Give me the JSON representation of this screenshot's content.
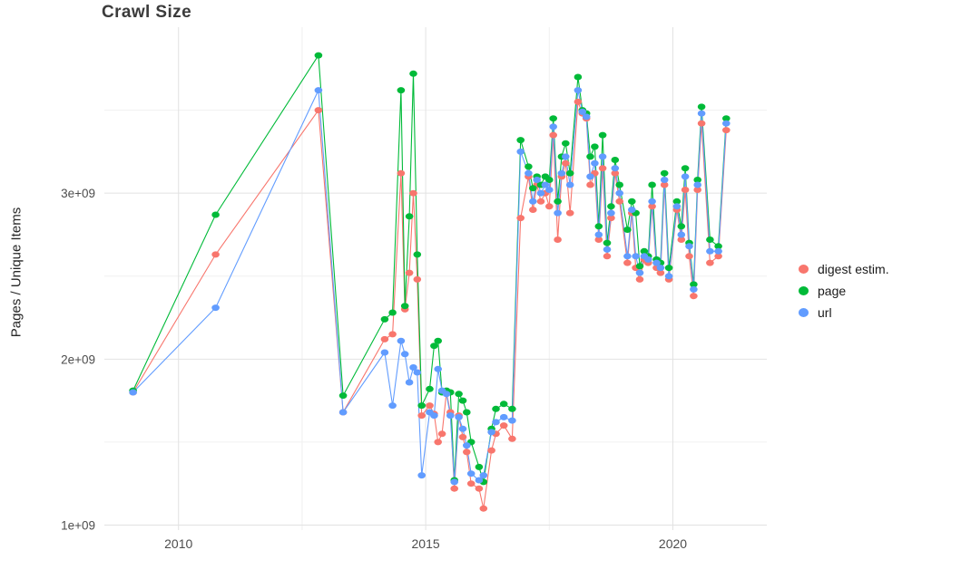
{
  "chart_data": {
    "type": "line",
    "title": "Crawl Size",
    "ylabel": "Pages / Unique Items",
    "xlabel": "",
    "legend_position": "right",
    "grid": true,
    "unit": "values in billions (1e+09)",
    "xlim": [
      2008.5,
      2021.9
    ],
    "ylim": [
      0.97,
      4.0
    ],
    "x_ticks": [
      {
        "v": 2010,
        "label": "2010"
      },
      {
        "v": 2015,
        "label": "2015"
      },
      {
        "v": 2020,
        "label": "2020"
      }
    ],
    "y_ticks": [
      {
        "v": 1,
        "label": "1e+09"
      },
      {
        "v": 2,
        "label": "2e+09"
      },
      {
        "v": 3,
        "label": "3e+09"
      }
    ],
    "x_minor_gridlines": [
      2012.5,
      2017.5
    ],
    "y_minor_gridlines": [
      1.5,
      2.5,
      3.5
    ],
    "x": [
      2009.08,
      2010.75,
      2012.83,
      2013.33,
      2014.17,
      2014.33,
      2014.5,
      2014.58,
      2014.67,
      2014.75,
      2014.83,
      2014.92,
      2015.08,
      2015.17,
      2015.25,
      2015.33,
      2015.42,
      2015.5,
      2015.58,
      2015.67,
      2015.75,
      2015.83,
      2015.92,
      2016.08,
      2016.17,
      2016.33,
      2016.42,
      2016.58,
      2016.75,
      2016.92,
      2017.08,
      2017.17,
      2017.25,
      2017.33,
      2017.42,
      2017.5,
      2017.58,
      2017.67,
      2017.75,
      2017.83,
      2017.92,
      2018.08,
      2018.17,
      2018.25,
      2018.33,
      2018.42,
      2018.5,
      2018.58,
      2018.67,
      2018.75,
      2018.83,
      2018.92,
      2019.08,
      2019.17,
      2019.25,
      2019.33,
      2019.42,
      2019.5,
      2019.58,
      2019.67,
      2019.75,
      2019.83,
      2019.92,
      2020.08,
      2020.17,
      2020.25,
      2020.33,
      2020.42,
      2020.5,
      2020.58,
      2020.75,
      2020.92,
      2021.08
    ],
    "series": [
      {
        "name": "digest estim.",
        "color": "#F8766D",
        "values": [
          1.8,
          2.63,
          3.5,
          1.68,
          2.12,
          2.15,
          3.12,
          2.3,
          2.52,
          3.0,
          2.48,
          1.66,
          1.72,
          1.67,
          1.5,
          1.55,
          1.8,
          1.68,
          1.22,
          1.66,
          1.53,
          1.44,
          1.25,
          1.22,
          1.1,
          1.45,
          1.55,
          1.6,
          1.52,
          2.85,
          3.1,
          2.9,
          3.05,
          2.95,
          3.0,
          2.92,
          3.35,
          2.72,
          3.1,
          3.18,
          2.88,
          3.55,
          3.48,
          3.45,
          3.05,
          3.12,
          2.72,
          3.15,
          2.62,
          2.85,
          3.12,
          2.95,
          2.58,
          2.88,
          2.55,
          2.48,
          2.6,
          2.58,
          2.92,
          2.55,
          2.52,
          3.05,
          2.48,
          2.9,
          2.72,
          3.02,
          2.62,
          2.38,
          3.02,
          3.42,
          2.58,
          2.62,
          3.38
        ]
      },
      {
        "name": "page",
        "color": "#00BA38",
        "values": [
          1.81,
          2.87,
          3.83,
          1.78,
          2.24,
          2.28,
          3.62,
          2.32,
          2.86,
          3.72,
          2.63,
          1.72,
          1.82,
          2.08,
          2.11,
          1.8,
          1.81,
          1.8,
          1.27,
          1.79,
          1.75,
          1.68,
          1.5,
          1.35,
          1.26,
          1.58,
          1.7,
          1.73,
          1.7,
          3.32,
          3.16,
          3.03,
          3.1,
          3.05,
          3.1,
          3.08,
          3.45,
          2.95,
          3.22,
          3.3,
          3.12,
          3.7,
          3.5,
          3.48,
          3.22,
          3.28,
          2.8,
          3.35,
          2.7,
          2.92,
          3.2,
          3.05,
          2.78,
          2.95,
          2.88,
          2.56,
          2.65,
          2.62,
          3.05,
          2.6,
          2.58,
          3.12,
          2.55,
          2.95,
          2.8,
          3.15,
          2.7,
          2.45,
          3.08,
          3.52,
          2.72,
          2.68,
          3.45
        ]
      },
      {
        "name": "url",
        "color": "#619CFF",
        "values": [
          1.8,
          2.31,
          3.62,
          1.68,
          2.04,
          1.72,
          2.11,
          2.03,
          1.86,
          1.95,
          1.92,
          1.3,
          1.68,
          1.66,
          1.94,
          1.81,
          1.79,
          1.66,
          1.26,
          1.65,
          1.58,
          1.48,
          1.31,
          1.27,
          1.3,
          1.56,
          1.62,
          1.65,
          1.63,
          3.25,
          3.12,
          2.95,
          3.08,
          3.0,
          3.05,
          3.02,
          3.4,
          2.88,
          3.12,
          3.22,
          3.05,
          3.62,
          3.49,
          3.46,
          3.1,
          3.18,
          2.75,
          3.22,
          2.66,
          2.88,
          3.15,
          3.0,
          2.62,
          2.9,
          2.62,
          2.52,
          2.62,
          2.6,
          2.95,
          2.58,
          2.55,
          3.08,
          2.5,
          2.92,
          2.75,
          3.1,
          2.68,
          2.42,
          3.05,
          3.48,
          2.65,
          2.65,
          3.42
        ]
      }
    ],
    "style": {
      "major_grid_color": "#E2E2E2",
      "minor_grid_color": "#F0F0F0",
      "tick_label_color": "#4D4D4D",
      "title_color": "#3B3B3B"
    }
  }
}
